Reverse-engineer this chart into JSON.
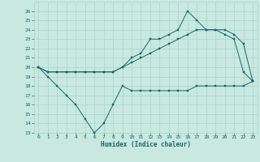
{
  "xlabel": "Humidex (Indice chaleur)",
  "xlim": [
    -0.5,
    23.5
  ],
  "ylim": [
    13,
    27
  ],
  "yticks": [
    13,
    14,
    15,
    16,
    17,
    18,
    19,
    20,
    21,
    22,
    23,
    24,
    25,
    26
  ],
  "xticks": [
    0,
    1,
    2,
    3,
    4,
    5,
    6,
    7,
    8,
    9,
    10,
    11,
    12,
    13,
    14,
    15,
    16,
    17,
    18,
    19,
    20,
    21,
    22,
    23
  ],
  "bg_color": "#c8e8e0",
  "line_color": "#1a6666",
  "grid_color": "#aad4cc",
  "line1_x": [
    0,
    1,
    2,
    3,
    4,
    5,
    6,
    7,
    8,
    9,
    10,
    11,
    12,
    13,
    14,
    15,
    16,
    17,
    18,
    19,
    20,
    21,
    22,
    23
  ],
  "line1_y": [
    20,
    19,
    18,
    17,
    16,
    14.5,
    13,
    14,
    16,
    18,
    17.5,
    17.5,
    17.5,
    17.5,
    17.5,
    17.5,
    17.5,
    18,
    18,
    18,
    18,
    18,
    18,
    18.5
  ],
  "line2_x": [
    0,
    1,
    2,
    3,
    4,
    5,
    6,
    7,
    8,
    9,
    10,
    11,
    12,
    13,
    14,
    15,
    16,
    17,
    18,
    19,
    20,
    21,
    22,
    23
  ],
  "line2_y": [
    20,
    19.5,
    19.5,
    19.5,
    19.5,
    19.5,
    19.5,
    19.5,
    19.5,
    20,
    20.5,
    21,
    21.5,
    22,
    22.5,
    23,
    23.5,
    24,
    24,
    24,
    24,
    23.5,
    22.5,
    18.5
  ],
  "line3_x": [
    0,
    1,
    2,
    3,
    4,
    5,
    6,
    7,
    8,
    9,
    10,
    11,
    12,
    13,
    14,
    15,
    16,
    17,
    18,
    19,
    20,
    21,
    22,
    23
  ],
  "line3_y": [
    20,
    19.5,
    19.5,
    19.5,
    19.5,
    19.5,
    19.5,
    19.5,
    19.5,
    20,
    21,
    21.5,
    23,
    23,
    23.5,
    24,
    26,
    25,
    24,
    24,
    23.5,
    23,
    19.5,
    18.5
  ]
}
